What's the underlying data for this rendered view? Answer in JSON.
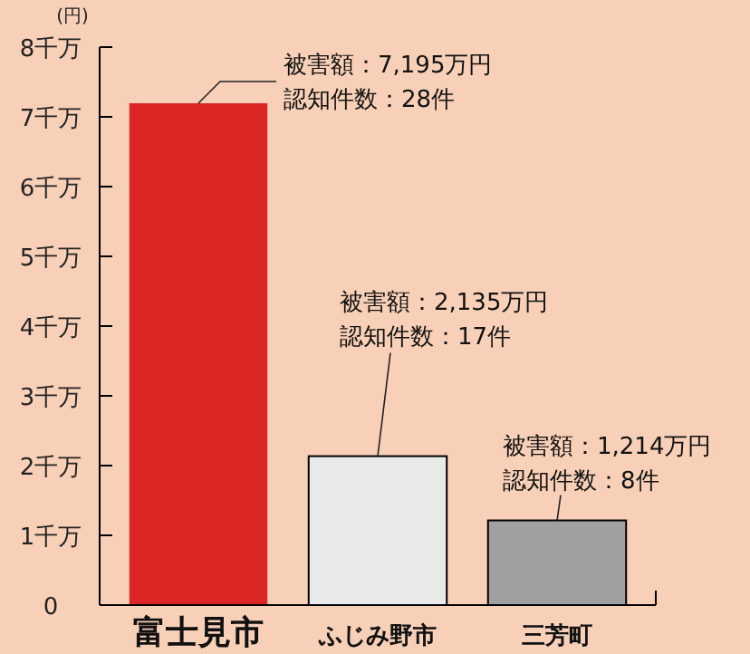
{
  "chart_data": {
    "type": "bar",
    "ylabel": "(円)",
    "categories": [
      "富士見市",
      "ふじみ野市",
      "三芳町"
    ],
    "values": [
      7.195,
      2.135,
      1.214
    ],
    "colors": [
      "#dc2626",
      "#eaeaea",
      "#a0a0a0"
    ],
    "ylim": [
      0,
      8
    ],
    "yticks": [
      0,
      {
        "value": 1,
        "label": "1千万"
      },
      {
        "value": 2,
        "label": "2千万"
      },
      {
        "value": 3,
        "label": "3千万"
      },
      {
        "value": 4,
        "label": "4千万"
      },
      {
        "value": 5,
        "label": "5千万"
      },
      {
        "value": 6,
        "label": "6千万"
      },
      {
        "value": 7,
        "label": "7千万"
      },
      {
        "value": 8,
        "label": "8千万"
      }
    ],
    "annotations": [
      "被害額：7,195万円",
      {
        "text": "認知件数：28件",
        "x": "富士見市",
        "y": 7.195
      },
      "被害額：2,135万円",
      {
        "text": "認知件数：17件",
        "x": "ふじみ野市",
        "y": 2.135
      },
      "被害額：1,214万円",
      {
        "text": "認知件数：8件",
        "x": "三芳町",
        "y": 1.214
      }
    ]
  }
}
